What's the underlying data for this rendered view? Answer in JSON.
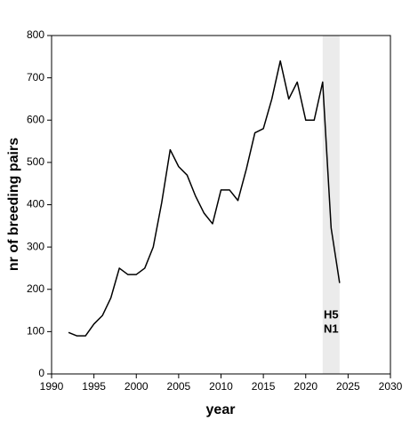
{
  "chart_data": {
    "type": "line",
    "x_label": "year",
    "y_label": "nr of breeding pairs",
    "x": [
      1992,
      1993,
      1994,
      1995,
      1996,
      1997,
      1998,
      1999,
      2000,
      2001,
      2002,
      2003,
      2004,
      2005,
      2006,
      2007,
      2008,
      2009,
      2010,
      2011,
      2012,
      2013,
      2014,
      2015,
      2016,
      2017,
      2018,
      2019,
      2020,
      2021,
      2022,
      2023,
      2024
    ],
    "values": [
      98,
      90,
      90,
      118,
      138,
      180,
      250,
      235,
      235,
      250,
      300,
      405,
      530,
      490,
      470,
      420,
      380,
      355,
      435,
      435,
      410,
      485,
      570,
      580,
      650,
      740,
      650,
      690,
      600,
      600,
      690,
      345,
      215
    ],
    "color": "#000000",
    "xlim": [
      1990,
      2030
    ],
    "xticks": [
      1990,
      1995,
      2000,
      2005,
      2010,
      2015,
      2020,
      2025,
      2030
    ],
    "ylim": [
      0,
      800
    ],
    "yticks": [
      0,
      100,
      200,
      300,
      400,
      500,
      600,
      700,
      800
    ],
    "grid": false,
    "highlight": {
      "x": [
        2022,
        2024
      ],
      "color": "#ebebeb",
      "labels": [
        "H5",
        "N1"
      ]
    }
  }
}
